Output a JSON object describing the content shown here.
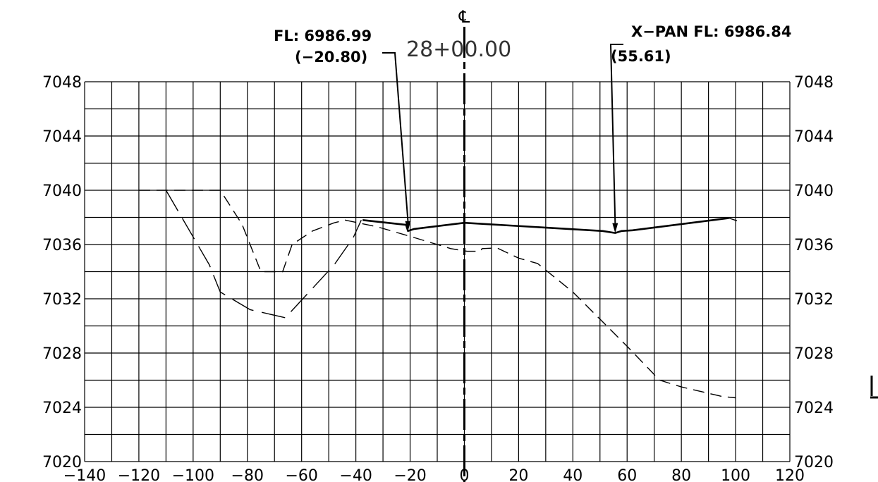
{
  "chart_data": {
    "type": "line",
    "title": "",
    "xlabel": "",
    "ylabel": "",
    "xlim": [
      -140,
      120
    ],
    "ylim": [
      7020,
      7048
    ],
    "x_ticks": [
      -140,
      -120,
      -100,
      -80,
      -60,
      -40,
      -20,
      0,
      20,
      40,
      60,
      80,
      100,
      120
    ],
    "y_ticks": [
      7020,
      7024,
      7028,
      7032,
      7036,
      7040,
      7044,
      7048
    ],
    "grid": true,
    "centerline": {
      "symbol": "℄",
      "x": 0,
      "station": "28+00.00"
    },
    "series": [
      {
        "style": "solid-bold",
        "points": [
          [
            -37.5,
            7037.8
          ],
          [
            -21.5,
            7037.45
          ],
          [
            -20.8,
            7037.0
          ],
          [
            -18.5,
            7037.15
          ],
          [
            0,
            7037.6
          ],
          [
            51,
            7037.0
          ],
          [
            55.6,
            7036.85
          ],
          [
            58,
            7037.0
          ],
          [
            62,
            7037.05
          ],
          [
            97.5,
            7037.95
          ]
        ]
      },
      {
        "style": "dashed-long",
        "points": [
          [
            -110,
            7040.0
          ],
          [
            -94,
            7034.5
          ],
          [
            -90,
            7032.5
          ],
          [
            -79,
            7031.2
          ],
          [
            -66,
            7030.6
          ],
          [
            -48,
            7034.5
          ],
          [
            -41,
            7036.5
          ],
          [
            -38,
            7037.8
          ]
        ]
      },
      {
        "style": "dashed-short",
        "points": [
          [
            -120,
            7040.0
          ],
          [
            -90,
            7040.0
          ],
          [
            -82,
            7037.5
          ],
          [
            -75,
            7034.0
          ],
          [
            -67,
            7034.0
          ],
          [
            -63.5,
            7036.0
          ],
          [
            -56,
            7037.0
          ],
          [
            -48,
            7037.6
          ],
          [
            -44,
            7037.8
          ],
          [
            -32,
            7037.3
          ],
          [
            -20,
            7036.6
          ],
          [
            -5,
            7035.7
          ],
          [
            1,
            7035.5
          ],
          [
            6,
            7035.5
          ],
          [
            6.5,
            7035.7
          ],
          [
            12,
            7035.75
          ],
          [
            20,
            7035.0
          ],
          [
            27,
            7034.6
          ],
          [
            40,
            7032.5
          ],
          [
            50,
            7030.5
          ],
          [
            60,
            7028.5
          ],
          [
            72,
            7026.0
          ],
          [
            80,
            7025.5
          ],
          [
            95,
            7024.8
          ],
          [
            100,
            7024.7
          ]
        ]
      },
      {
        "style": "dashed-short",
        "points": [
          [
            97.5,
            7037.95
          ],
          [
            100.5,
            7037.75
          ]
        ]
      }
    ],
    "annotations": [
      {
        "line1": "FL: 6986.99",
        "line2": "(−20.80)",
        "x": -20.8,
        "y": 7037.0
      },
      {
        "line1": "X−PAN  FL: 6986.84",
        "line2": "(55.61)",
        "x": 55.6,
        "y": 7036.85
      }
    ]
  }
}
